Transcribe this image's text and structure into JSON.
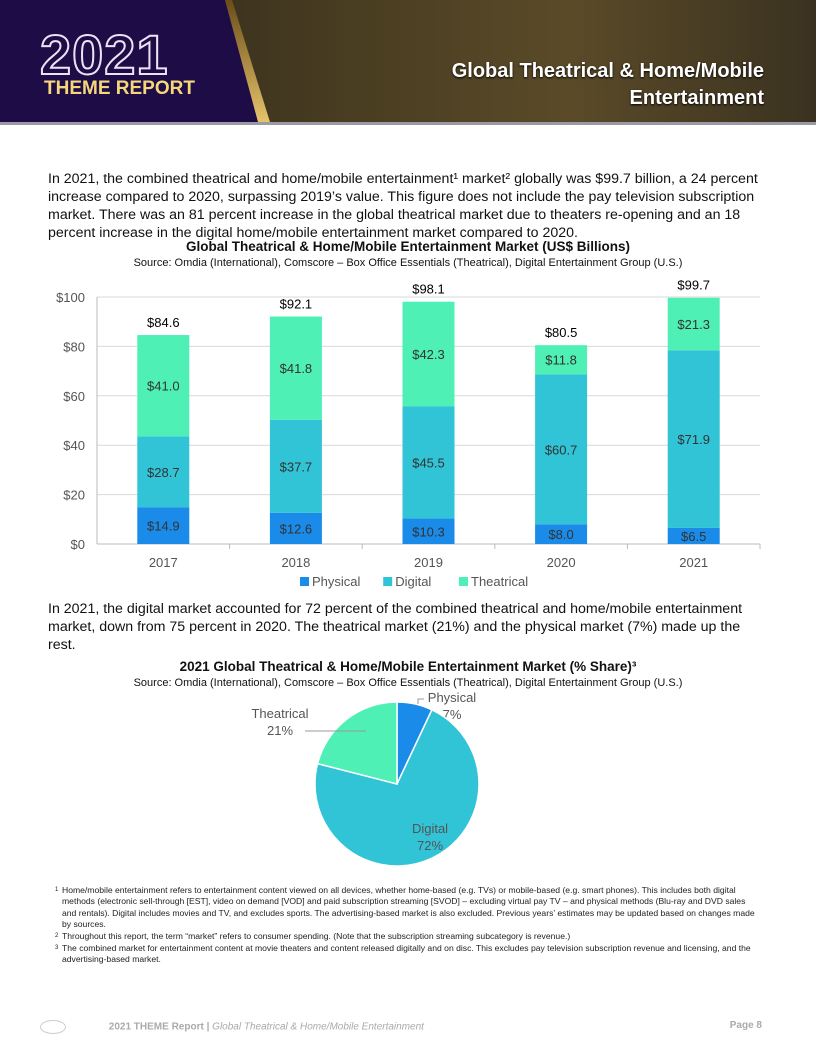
{
  "header": {
    "logo_year": "2021",
    "logo_subtitle": "THEME REPORT",
    "title_line1": "Global Theatrical & Home/Mobile",
    "title_line2": "Entertainment"
  },
  "intro": "In 2021, the combined theatrical and home/mobile entertainment¹ market² globally was $99.7 billion, a 24 percent increase compared to 2020, surpassing 2019’s value. This figure does not include the pay television subscription market. There was an 81 percent increase in the global theatrical market due to theaters re-opening and an 18 percent increase in the digital home/mobile entertainment market compared to 2020.",
  "middle_text": "In 2021, the digital market accounted for 72 percent of the combined theatrical and home/mobile entertainment market, down from 75 percent in 2020. The theatrical market (21%) and the physical market (7%) made up the rest.",
  "chart_data": [
    {
      "type": "bar",
      "stacked": true,
      "title": "Global Theatrical & Home/Mobile Entertainment Market (US$ Billions)",
      "subtitle": "Source: Omdia (International), Comscore – Box Office Essentials (Theatrical), Digital Entertainment Group (U.S.)",
      "categories": [
        "2017",
        "2018",
        "2019",
        "2020",
        "2021"
      ],
      "series": [
        {
          "name": "Physical",
          "color": "#1a8be8",
          "values": [
            14.9,
            12.6,
            10.3,
            8.0,
            6.5
          ],
          "labels": [
            "$14.9",
            "$12.6",
            "$10.3",
            "$8.0",
            "$6.5"
          ]
        },
        {
          "name": "Digital",
          "color": "#31c3d6",
          "values": [
            28.7,
            37.7,
            45.5,
            60.7,
            71.9
          ],
          "labels": [
            "$28.7",
            "$37.7",
            "$45.5",
            "$60.7",
            "$71.9"
          ]
        },
        {
          "name": "Theatrical",
          "color": "#4ef0b6",
          "values": [
            41.0,
            41.8,
            42.3,
            11.8,
            21.3
          ],
          "labels": [
            "$41.0",
            "$41.8",
            "$42.3",
            "$11.8",
            "$21.3"
          ]
        }
      ],
      "totals": [
        "$84.6",
        "$92.1",
        "$98.1",
        "$80.5",
        "$99.7"
      ],
      "yticks": [
        "$0",
        "$20",
        "$40",
        "$60",
        "$80",
        "$100"
      ],
      "ylim": [
        0,
        100
      ],
      "grid": true,
      "legend": "bottom"
    },
    {
      "type": "pie",
      "title": "2021 Global Theatrical & Home/Mobile Entertainment Market (% Share)³",
      "subtitle": "Source: Omdia (International), Comscore – Box Office Essentials (Theatrical), Digital Entertainment Group (U.S.)",
      "slices": [
        {
          "name": "Physical",
          "value": 7,
          "label": "7%",
          "color": "#1a8be8"
        },
        {
          "name": "Digital",
          "value": 72,
          "label": "72%",
          "color": "#31c3d6"
        },
        {
          "name": "Theatrical",
          "value": 21,
          "label": "21%",
          "color": "#4ef0b6"
        }
      ]
    }
  ],
  "footnotes": [
    {
      "num": "1",
      "text": "Home/mobile entertainment refers to entertainment content viewed on all devices, whether home-based (e.g. TVs) or mobile-based (e.g. smart phones). This includes both digital methods (electronic sell-through [EST], video on demand [VOD] and paid subscription streaming [SVOD] – excluding virtual pay TV – and physical methods (Blu-ray and DVD sales and rentals). Digital includes movies and TV, and excludes sports. The advertising-based market is also excluded. Previous years’ estimates may be updated based on changes made by sources."
    },
    {
      "num": "2",
      "text": "Throughout this report, the term “market” refers to consumer spending. (Note that the subscription streaming subcategory is revenue.)"
    },
    {
      "num": "3",
      "text": "The combined market for entertainment content at movie theaters and content released digitally and on disc. This excludes pay television subscription revenue and licensing, and the advertising-based market."
    }
  ],
  "footer": {
    "report": "2021 THEME Report",
    "separator": " | ",
    "section": "Global Theatrical & Home/Mobile Entertainment",
    "page": "Page 8"
  }
}
